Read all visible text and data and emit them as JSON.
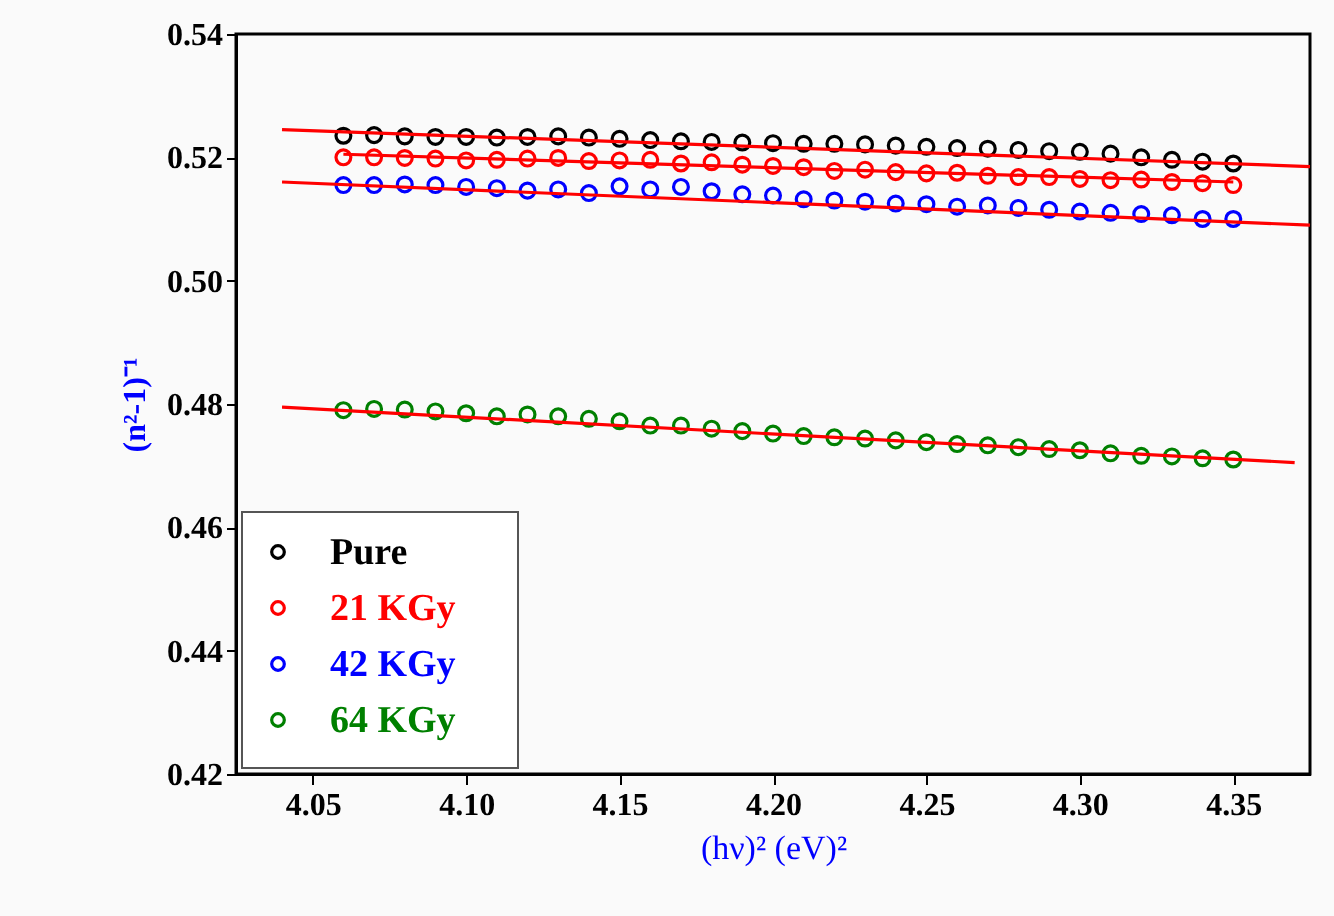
{
  "chart_data": {
    "type": "scatter",
    "xlabel": "(hν)²     (eV)²",
    "ylabel": "(n²-1)⁻¹",
    "xlim": [
      4.025,
      4.375
    ],
    "xticks": [
      4.05,
      {
        "value": 4.1,
        "label": "4.10"
      },
      4.15,
      {
        "value": 4.2,
        "label": "4.20"
      },
      4.25,
      {
        "value": 4.3,
        "label": "4.30"
      },
      4.35
    ],
    "ylim": [
      0.42,
      0.54
    ],
    "yticks": [
      0.42,
      0.44,
      0.46,
      0.48,
      {
        "value": 0.5,
        "label": "0.50"
      },
      0.52,
      0.54
    ],
    "grid": false,
    "legend": "bottom left",
    "marker": "circle",
    "x": [
      4.06,
      4.07,
      4.08,
      4.09,
      4.1,
      4.11,
      4.12,
      4.13,
      4.14,
      4.15,
      4.16,
      4.17,
      4.18,
      4.19,
      4.2,
      4.21,
      4.22,
      4.23,
      4.24,
      4.25,
      4.26,
      4.27,
      4.28,
      4.29,
      4.3,
      4.31,
      4.32,
      4.33,
      4.34,
      4.35
    ],
    "series": [
      {
        "name": "Pure",
        "color": "#000000",
        "values": [
          0.5235,
          0.5236,
          0.5234,
          0.5233,
          0.5233,
          0.5232,
          0.5233,
          0.5234,
          0.5232,
          0.523,
          0.5228,
          0.5226,
          0.5225,
          0.5224,
          0.5223,
          0.5222,
          0.5222,
          0.5221,
          0.5219,
          0.5217,
          0.5215,
          0.5214,
          0.5212,
          0.521,
          0.5209,
          0.5206,
          0.52,
          0.5196,
          0.5193,
          0.519
        ]
      },
      {
        "name": "21 KGy",
        "color": "#ff0000",
        "values": [
          0.52,
          0.52,
          0.5199,
          0.5198,
          0.5195,
          0.5196,
          0.5198,
          0.5199,
          0.5194,
          0.5195,
          0.5196,
          0.519,
          0.5192,
          0.5188,
          0.5186,
          0.5184,
          0.5178,
          0.518,
          0.5176,
          0.5174,
          0.5175,
          0.517,
          0.5168,
          0.5168,
          0.5165,
          0.5163,
          0.5164,
          0.516,
          0.5158,
          0.5155
        ]
      },
      {
        "name": "42 KGy",
        "color": "#0000ff",
        "values": [
          0.5155,
          0.5155,
          0.5156,
          0.5155,
          0.5152,
          0.515,
          0.5146,
          0.5148,
          0.5142,
          0.5153,
          0.5148,
          0.5152,
          0.5145,
          0.514,
          0.5138,
          0.5132,
          0.513,
          0.5128,
          0.5125,
          0.5124,
          0.512,
          0.5122,
          0.5118,
          0.5115,
          0.5112,
          0.511,
          0.5108,
          0.5106,
          0.51,
          0.51
        ]
      },
      {
        "name": "64 KGy",
        "color": "#008000",
        "values": [
          0.479,
          0.4792,
          0.4791,
          0.4788,
          0.4785,
          0.478,
          0.4783,
          0.478,
          0.4776,
          0.4772,
          0.4765,
          0.4765,
          0.476,
          0.4756,
          0.4752,
          0.4748,
          0.4746,
          0.4744,
          0.4741,
          0.4738,
          0.4735,
          0.4733,
          0.473,
          0.4727,
          0.4725,
          0.472,
          0.4716,
          0.4715,
          0.4712,
          0.471
        ]
      },
      {
        "type": "line",
        "color": "#ff0000",
        "marker": "none",
        "line_style": "solid",
        "x": [
          4.04,
          4.375
        ],
        "values": [
          0.5245,
          0.5185
        ]
      },
      {
        "type": "line",
        "color": "#ff0000",
        "marker": "none",
        "line_style": "solid",
        "x": [
          4.06,
          4.35
        ],
        "values": [
          0.5205,
          0.516
        ]
      },
      {
        "type": "line",
        "color": "#ff0000",
        "marker": "none",
        "line_style": "solid",
        "x": [
          4.04,
          4.375
        ],
        "values": [
          0.516,
          0.509
        ]
      },
      {
        "type": "line",
        "color": "#ff0000",
        "marker": "none",
        "line_style": "solid",
        "x": [
          4.04,
          4.37
        ],
        "values": [
          0.4795,
          0.4705
        ]
      }
    ]
  }
}
